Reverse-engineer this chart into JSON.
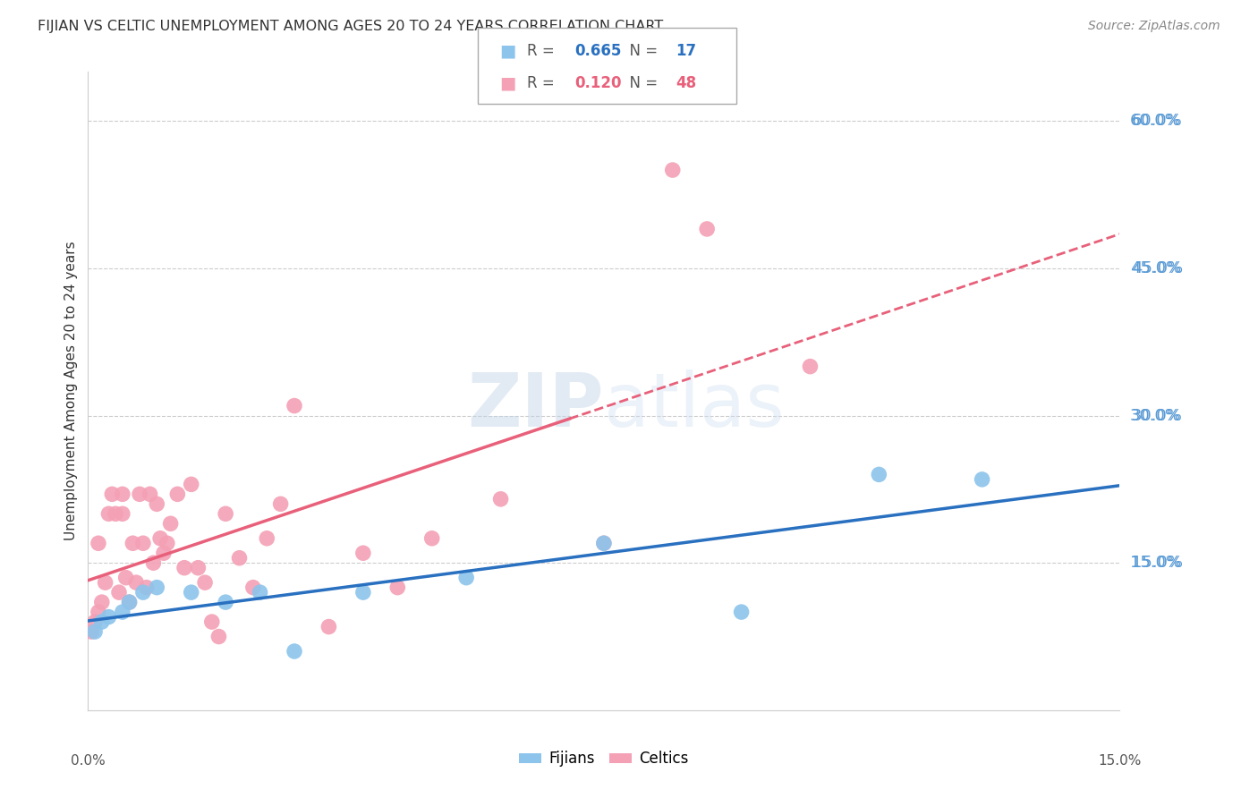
{
  "title": "FIJIAN VS CELTIC UNEMPLOYMENT AMONG AGES 20 TO 24 YEARS CORRELATION CHART",
  "source": "Source: ZipAtlas.com",
  "ylabel": "Unemployment Among Ages 20 to 24 years",
  "xlim": [
    0.0,
    15.0
  ],
  "ylim": [
    0.0,
    65.0
  ],
  "yticks": [
    15.0,
    30.0,
    45.0,
    60.0
  ],
  "fijian_color": "#8CC4EC",
  "celtic_color": "#F4A0B5",
  "fijian_line_color": "#2970C0",
  "celtic_line_color": "#E8607A",
  "fijian_R": 0.665,
  "fijian_N": 17,
  "celtic_R": 0.12,
  "celtic_N": 48,
  "fijian_x": [
    0.1,
    0.2,
    0.3,
    0.5,
    0.6,
    0.8,
    1.0,
    1.5,
    2.0,
    2.5,
    3.0,
    4.0,
    5.5,
    7.5,
    9.5,
    11.5,
    13.0
  ],
  "fijian_y": [
    8.0,
    9.0,
    9.5,
    10.0,
    11.0,
    12.0,
    12.5,
    12.0,
    11.0,
    12.0,
    6.0,
    12.0,
    13.5,
    17.0,
    10.0,
    24.0,
    23.5
  ],
  "celtic_x": [
    0.05,
    0.1,
    0.15,
    0.15,
    0.2,
    0.25,
    0.3,
    0.35,
    0.4,
    0.45,
    0.5,
    0.5,
    0.55,
    0.6,
    0.65,
    0.7,
    0.75,
    0.8,
    0.85,
    0.9,
    0.95,
    1.0,
    1.05,
    1.1,
    1.15,
    1.2,
    1.3,
    1.4,
    1.5,
    1.6,
    1.7,
    1.8,
    1.9,
    2.0,
    2.2,
    2.4,
    2.6,
    2.8,
    3.0,
    3.5,
    4.0,
    4.5,
    5.0,
    6.0,
    7.5,
    8.5,
    9.0,
    10.5
  ],
  "celtic_y": [
    8.0,
    9.0,
    10.0,
    17.0,
    11.0,
    13.0,
    20.0,
    22.0,
    20.0,
    12.0,
    20.0,
    22.0,
    13.5,
    11.0,
    17.0,
    13.0,
    22.0,
    17.0,
    12.5,
    22.0,
    15.0,
    21.0,
    17.5,
    16.0,
    17.0,
    19.0,
    22.0,
    14.5,
    23.0,
    14.5,
    13.0,
    9.0,
    7.5,
    20.0,
    15.5,
    12.5,
    17.5,
    21.0,
    31.0,
    8.5,
    16.0,
    12.5,
    17.5,
    21.5,
    17.0,
    55.0,
    49.0,
    35.0
  ],
  "celtic_solid_end_x": 7.0,
  "background_color": "#FFFFFF",
  "grid_color": "#CCCCCC",
  "right_label_color": "#5B9BD5",
  "title_color": "#333333",
  "source_color": "#888888"
}
